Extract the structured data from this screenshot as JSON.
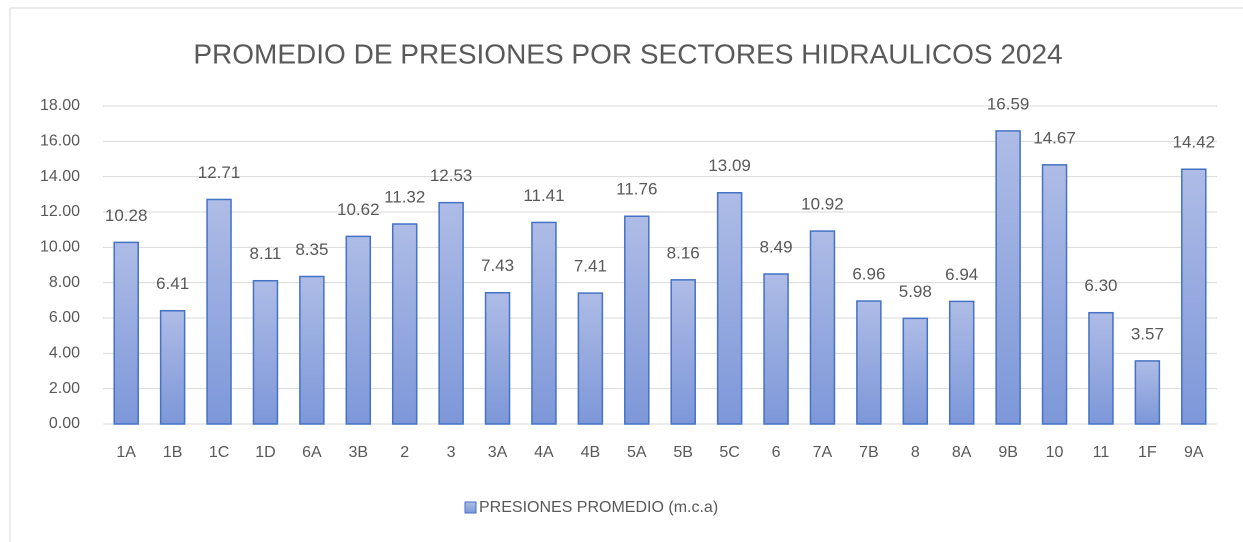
{
  "chart_data": {
    "type": "bar",
    "title": "PROMEDIO DE PRESIONES POR SECTORES HIDRAULICOS 2024",
    "categories": [
      "1A",
      "1B",
      "1C",
      "1D",
      "6A",
      "3B",
      "2",
      "3",
      "3A",
      "4A",
      "4B",
      "5A",
      "5B",
      "5C",
      "6",
      "7A",
      "7B",
      "8",
      "8A",
      "9B",
      "10",
      "11",
      "1F",
      "9A"
    ],
    "series": [
      {
        "name": "PRESIONES PROMEDIO (m.c.a)",
        "color": "#4472c4",
        "values": [
          10.28,
          6.41,
          12.71,
          8.11,
          8.35,
          10.62,
          11.32,
          12.53,
          7.43,
          11.41,
          7.41,
          11.76,
          8.16,
          13.09,
          8.49,
          10.92,
          6.96,
          5.98,
          6.94,
          16.59,
          14.67,
          6.3,
          3.57,
          14.42
        ],
        "value_labels": [
          "10.28",
          "6.41",
          "12.71",
          "8.11",
          "8.35",
          "10.62",
          "11.32",
          "12.53",
          "7.43",
          "11.41",
          "7.41",
          "11.76",
          "8.16",
          "13.09",
          "8.49",
          "10.92",
          "6.96",
          "5.98",
          "6.94",
          "16.59",
          "14.67",
          "6.30",
          "3.57",
          "14.42"
        ]
      }
    ],
    "ylim": [
      0,
      18
    ],
    "yticks": [
      {
        "value": 0,
        "label": "0.00"
      },
      {
        "value": 2,
        "label": "2.00"
      },
      {
        "value": 4,
        "label": "4.00"
      },
      {
        "value": 6,
        "label": "6.00"
      },
      {
        "value": 8,
        "label": "8.00"
      },
      {
        "value": 10,
        "label": "10.00"
      },
      {
        "value": 12,
        "label": "12.00"
      },
      {
        "value": 14,
        "label": "14.00"
      },
      {
        "value": 16,
        "label": "16.00"
      },
      {
        "value": 18,
        "label": "18.00"
      }
    ],
    "grid": true,
    "legend": "bottom"
  }
}
